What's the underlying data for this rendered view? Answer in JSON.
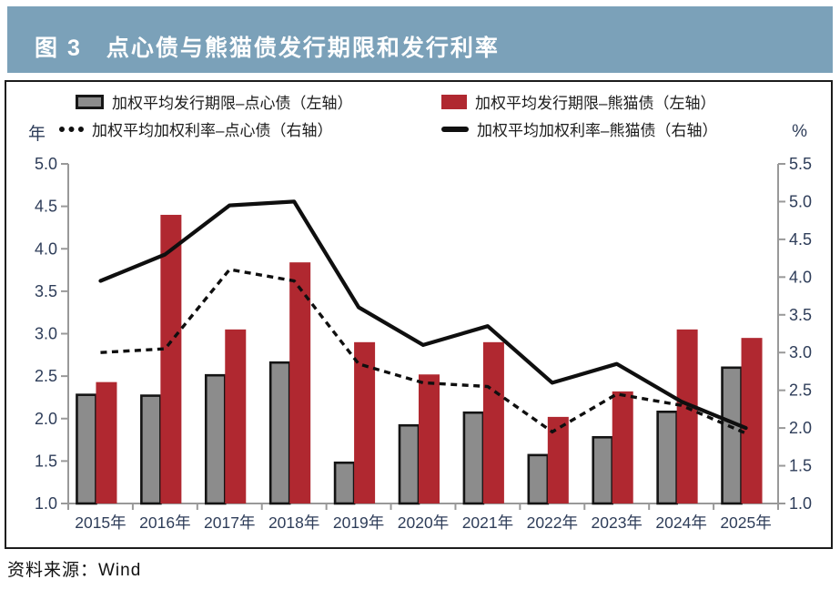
{
  "header": {
    "title": "图 3　点心债与熊猫债发行期限和发行利率"
  },
  "source": {
    "label": "资料来源：Wind"
  },
  "colors": {
    "header_bg": "#7ba1b9",
    "bar_dimsum_gray": "#8c8c8c",
    "bar_panda_red": "#b02830",
    "line_black": "#0f0f0f",
    "axis_gray": "#999999",
    "tick_text": "#2e3d59"
  },
  "legend": {
    "items": [
      {
        "marker": "gray-bar-swatch",
        "label": "加权平均发行期限–点心债（左轴）"
      },
      {
        "marker": "red-bar-swatch",
        "label": "加权平均发行期限–熊猫债（左轴）"
      },
      {
        "marker": "dashed-line-swatch",
        "label": "加权平均加权利率–点心债（右轴）"
      },
      {
        "marker": "solid-line-swatch",
        "label": "加权平均加权利率–熊猫债（右轴）"
      }
    ]
  },
  "chart_data": {
    "type": "bar",
    "subtype": "combo bar + line, dual axis",
    "categories": [
      "2015年",
      "2016年",
      "2017年",
      "2018年",
      "2019年",
      "2020年",
      "2021年",
      "2022年",
      "2023年",
      "2024年",
      "2025年"
    ],
    "series": [
      {
        "name": "加权平均发行期限–点心债（左轴）",
        "type": "bar",
        "axis": "left",
        "color": "#8c8c8c",
        "stroke": "#141414",
        "values": [
          2.28,
          2.27,
          2.51,
          2.66,
          1.48,
          1.92,
          2.07,
          1.57,
          1.78,
          2.08,
          2.6
        ]
      },
      {
        "name": "加权平均发行期限–熊猫债（左轴）",
        "type": "bar",
        "axis": "left",
        "color": "#b02830",
        "stroke": "none",
        "values": [
          2.43,
          4.4,
          3.05,
          3.84,
          2.9,
          2.52,
          2.9,
          2.02,
          2.32,
          3.05,
          2.95
        ]
      },
      {
        "name": "加权平均加权利率–点心债（右轴）",
        "type": "line",
        "dash": "dashed",
        "axis": "right",
        "color": "#0f0f0f",
        "values": [
          3.0,
          3.05,
          4.1,
          3.95,
          2.85,
          2.6,
          2.55,
          1.95,
          2.45,
          2.3,
          1.93
        ]
      },
      {
        "name": "加权平均加权利率–熊猫债（右轴）",
        "type": "line",
        "dash": "solid",
        "axis": "right",
        "color": "#0f0f0f",
        "values": [
          3.95,
          4.3,
          4.95,
          5.0,
          3.6,
          3.1,
          3.35,
          2.6,
          2.85,
          2.35,
          2.0
        ]
      }
    ],
    "left_axis": {
      "label": "年",
      "min": 1.0,
      "max": 5.0,
      "step": 0.5,
      "ticks": [
        "5.0",
        "4.5",
        "4.0",
        "3.5",
        "3.0",
        "2.5",
        "2.0",
        "1.5",
        "1.0"
      ]
    },
    "right_axis": {
      "label": "%",
      "min": 1.0,
      "max": 5.5,
      "step": 0.5,
      "ticks": [
        "5.5",
        "5.0",
        "4.5",
        "4.0",
        "3.5",
        "3.0",
        "2.5",
        "2.0",
        "1.5",
        "1.0"
      ]
    },
    "grid": "off",
    "legend_position": "top inside plot frame, two rows"
  }
}
